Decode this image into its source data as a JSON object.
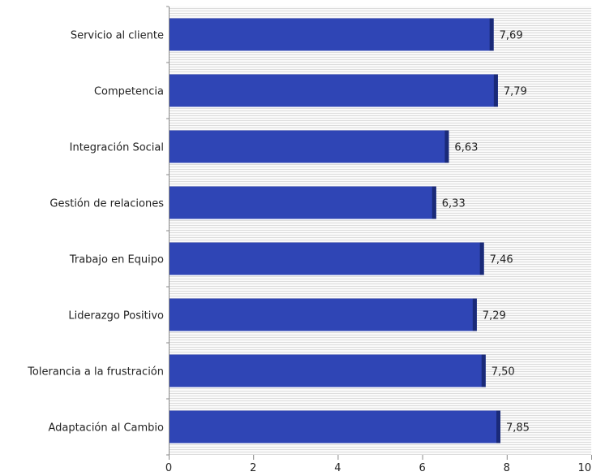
{
  "chart_data": {
    "type": "bar",
    "orientation": "horizontal",
    "title": "",
    "xlabel": "",
    "ylabel": "",
    "categories": [
      "Servicio al cliente",
      "Competencia",
      "Integración Social",
      "Gestión de relaciones",
      "Trabajo en Equipo",
      "Liderazgo Positivo",
      "Tolerancia a la frustración",
      "Adaptación al Cambio"
    ],
    "values": [
      7.69,
      7.79,
      6.63,
      6.33,
      7.46,
      7.29,
      7.5,
      7.85
    ],
    "value_labels": [
      "7,69",
      "7,79",
      "6,63",
      "6,33",
      "7,46",
      "7,29",
      "7,50",
      "7,85"
    ],
    "xlim": [
      0,
      10
    ],
    "xticks": [
      0,
      2,
      4,
      6,
      8,
      10
    ],
    "grid": true,
    "legend": "none",
    "colors": {
      "bar": "#2f45b5",
      "bar_edge": "#1a2a78",
      "grid": "#dcdcdc",
      "axis": "#888888"
    }
  }
}
